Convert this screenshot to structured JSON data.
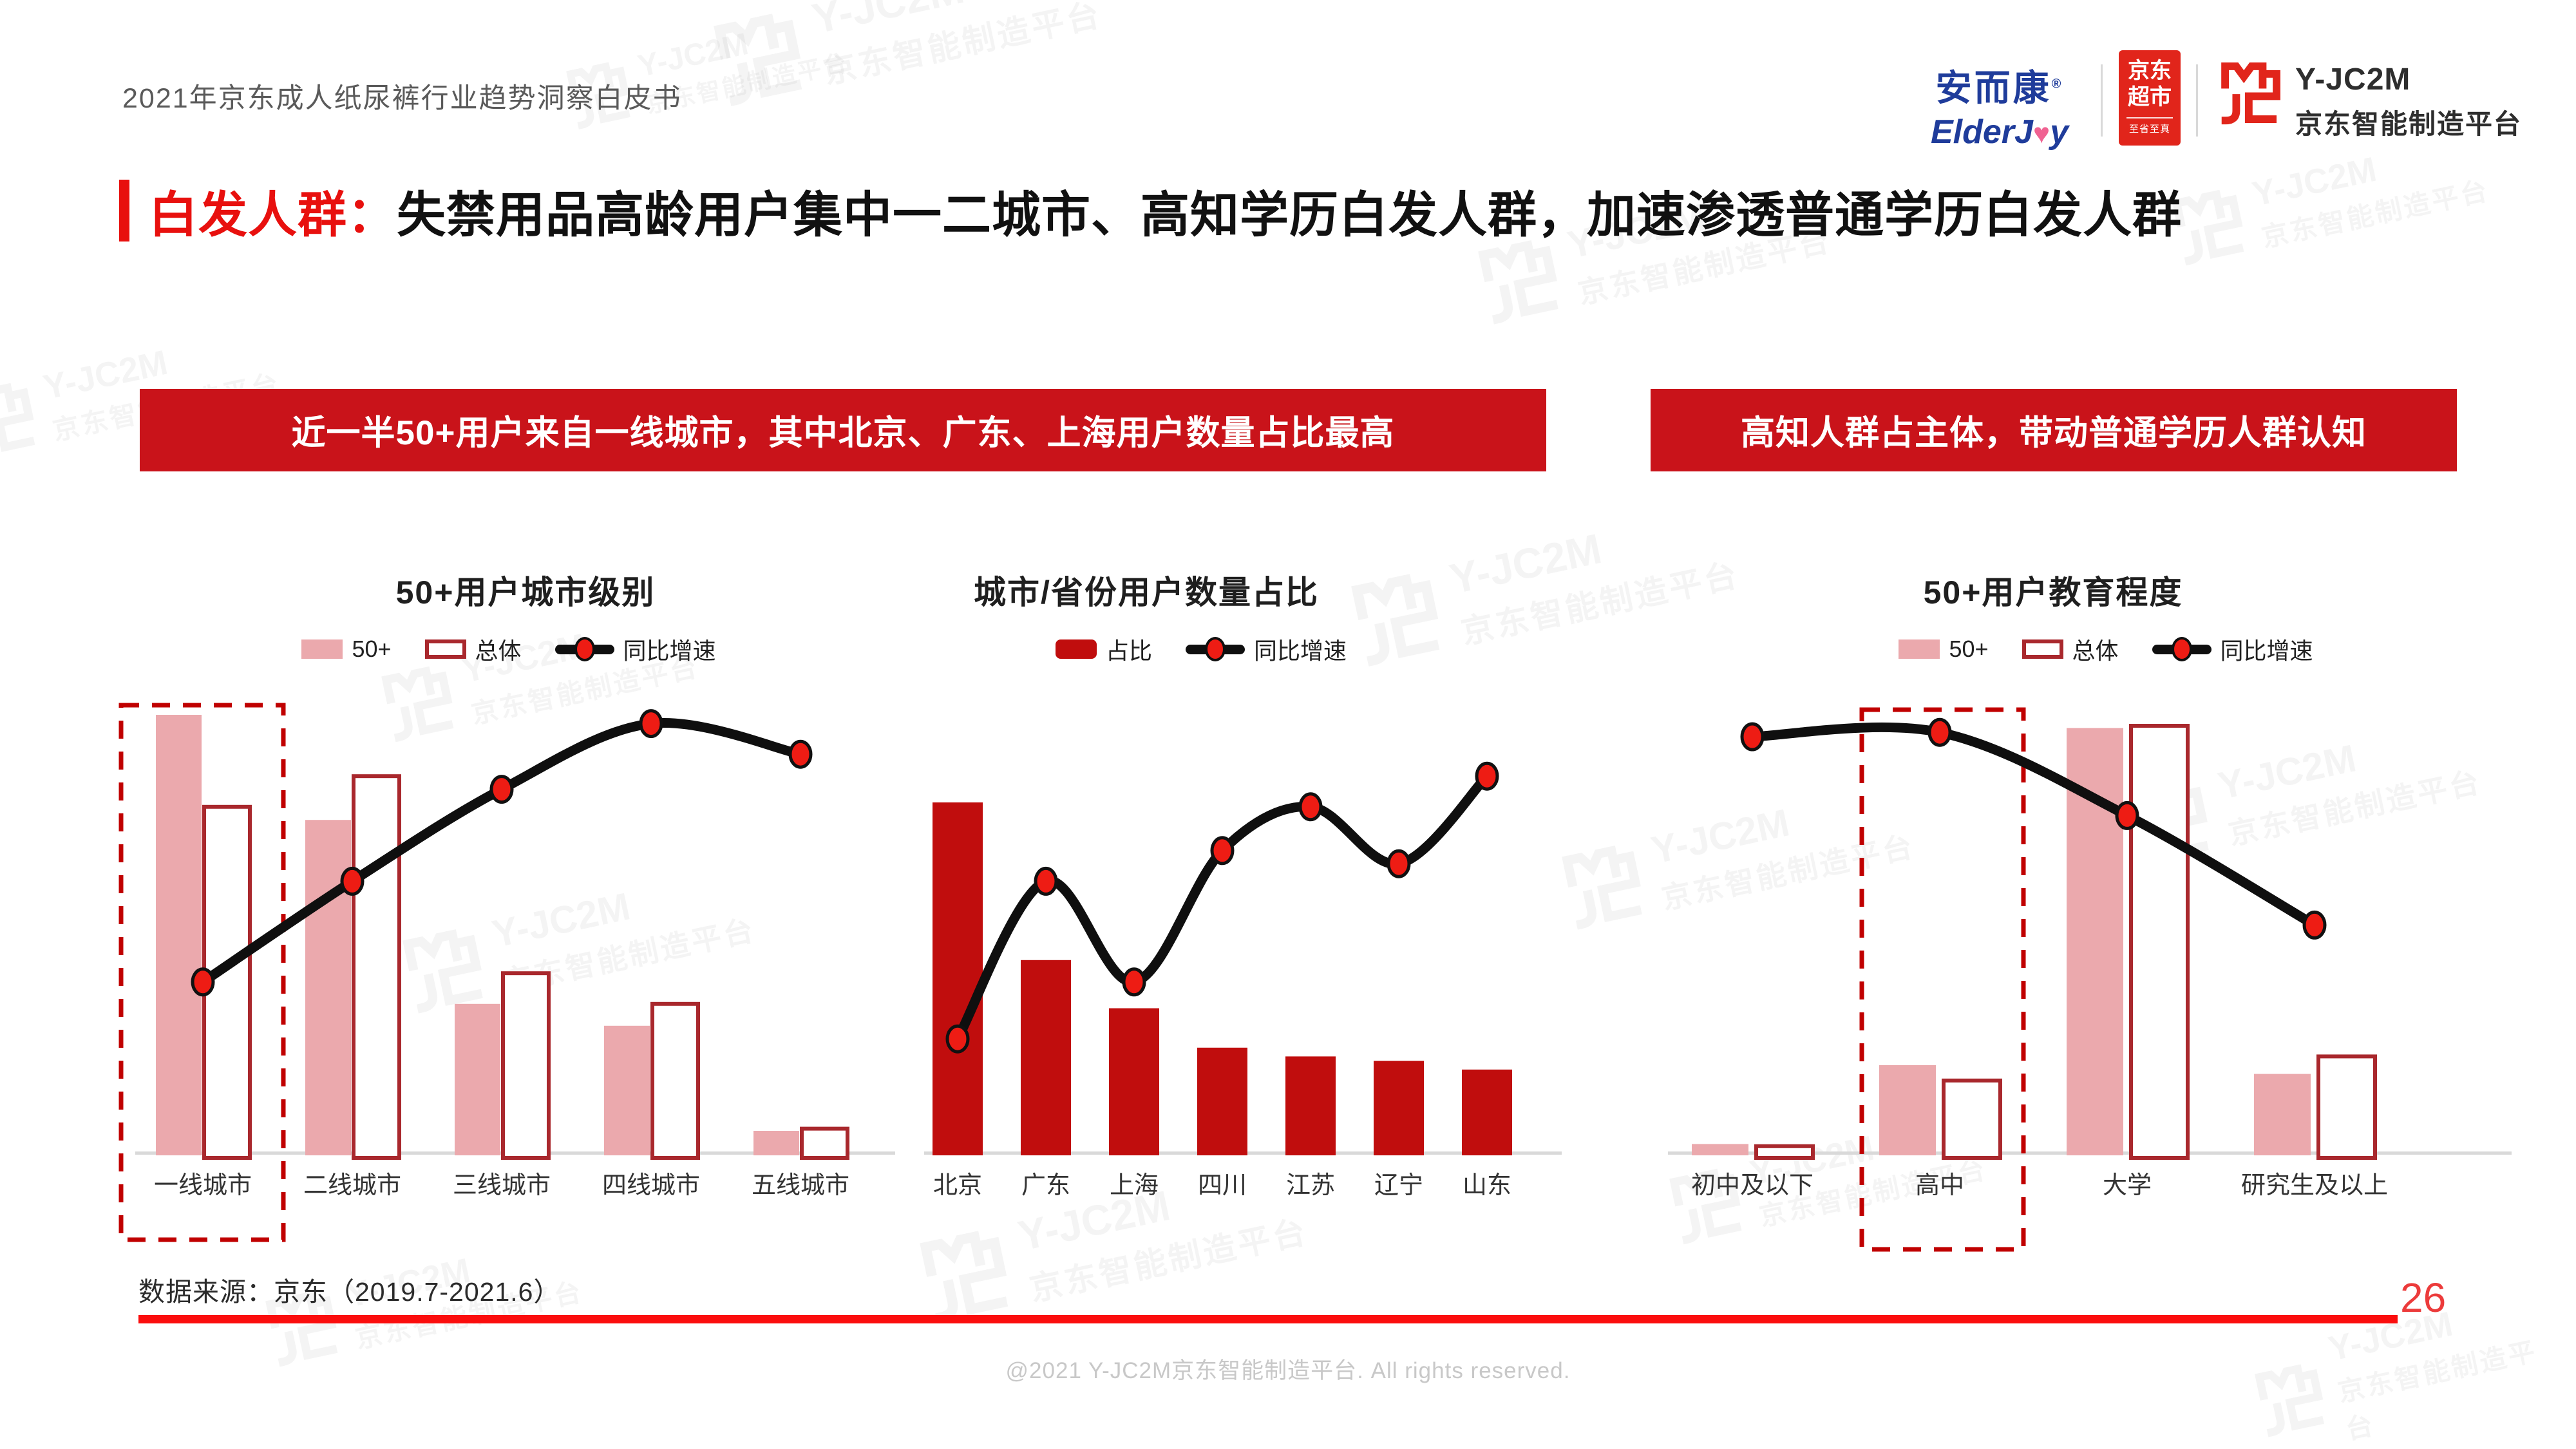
{
  "page": {
    "header_title": "2021年京东成人纸尿裤行业趋势洞察白皮书",
    "logos": {
      "elderjoy_cn": "安而康",
      "reg_mark": "®",
      "elderjoy_en_pre": "ElderJ",
      "elderjoy_en_post": "y",
      "jd_market_line1": "京东",
      "jd_market_line2": "超市",
      "jd_market_tagline": "至省至真",
      "yjc2m_name": "Y-JC2M",
      "yjc2m_cn": "京东智能制造平台"
    },
    "watermark": {
      "en": "Y-JC2M",
      "cn": "京东智能制造平台"
    },
    "title": {
      "prefix": "白发人群：",
      "text": "失禁用品高龄用户集中一二城市、高知学历白发人群，加速渗透普通学历白发人群"
    },
    "banners": [
      "近一半50+用户来自一线城市，其中北京、广东、上海用户数量占比最高",
      "高知人群占主体，带动普通学历人群认知"
    ],
    "footer": {
      "source": "数据来源：京东（2019.7-2021.6）",
      "page_number": "26",
      "copyright": "@2021 Y-JC2M京东智能制造平台. All rights reserved."
    },
    "colors": {
      "banner_red": "#C9131A",
      "title_red": "#E8100E",
      "bar_pink": "#EBA9AD",
      "bar_outline": "#A9282D",
      "bar_solid": "#C00D0D",
      "line_black": "#0F0F0F",
      "point_red": "#EE1C14",
      "highlight_dash_red": "#C00000",
      "axis_gray": "#D9D9D9",
      "jd_red": "#E1251B",
      "elderjoy_blue": "#1F3C9B",
      "footer_line_red": "#FB0D0D",
      "page_number_red": "#EC3B3B"
    }
  },
  "chart_data": [
    {
      "type": "bar+line",
      "title": "50+用户城市级别",
      "categories": [
        "一线城市",
        "二线城市",
        "三线城市",
        "四线城市",
        "五线城市"
      ],
      "series": [
        {
          "name": "50+",
          "kind": "bar",
          "style": "fill",
          "values": [
            100,
            76,
            34,
            29,
            5
          ]
        },
        {
          "name": "总体",
          "kind": "bar",
          "style": "outline",
          "values": [
            79,
            86,
            41,
            34,
            5.5
          ]
        },
        {
          "name": "同比增速",
          "kind": "line",
          "values": [
            39,
            62,
            83,
            98,
            91
          ]
        }
      ],
      "highlight_category": "一线城市",
      "legend_position": "top",
      "ylim": [
        0,
        100
      ],
      "note": "no numeric axis or data labels shown; values are relative heights (0-100) estimated from pixels"
    },
    {
      "type": "bar+line",
      "title": "城市/省份用户数量占比",
      "categories": [
        "北京",
        "广东",
        "上海",
        "四川",
        "江苏",
        "辽宁",
        "山东"
      ],
      "series": [
        {
          "name": "占比",
          "kind": "bar",
          "style": "solid",
          "values": [
            80,
            44,
            33,
            24,
            22,
            21,
            19
          ]
        },
        {
          "name": "同比增速",
          "kind": "line",
          "values": [
            26,
            62,
            39,
            69,
            79,
            66,
            86
          ]
        }
      ],
      "highlight_category": null,
      "legend_position": "top",
      "ylim": [
        0,
        100
      ],
      "note": "no numeric axis or data labels shown; values are relative heights (0-100) estimated from pixels"
    },
    {
      "type": "bar+line",
      "title": "50+用户教育程度",
      "categories": [
        "初中及以下",
        "高中",
        "大学",
        "研究生及以上"
      ],
      "series": [
        {
          "name": "50+",
          "kind": "bar",
          "style": "fill",
          "values": [
            2,
            20,
            97,
            18
          ]
        },
        {
          "name": "总体",
          "kind": "bar",
          "style": "outline",
          "values": [
            1.5,
            16.5,
            97.5,
            22
          ]
        },
        {
          "name": "同比增速",
          "kind": "line",
          "values": [
            95,
            96,
            77,
            52
          ]
        }
      ],
      "highlight_category": "高中",
      "legend_position": "top",
      "ylim": [
        0,
        100
      ],
      "note": "no numeric axis or data labels shown; values are relative heights (0-100) estimated from pixels"
    }
  ]
}
